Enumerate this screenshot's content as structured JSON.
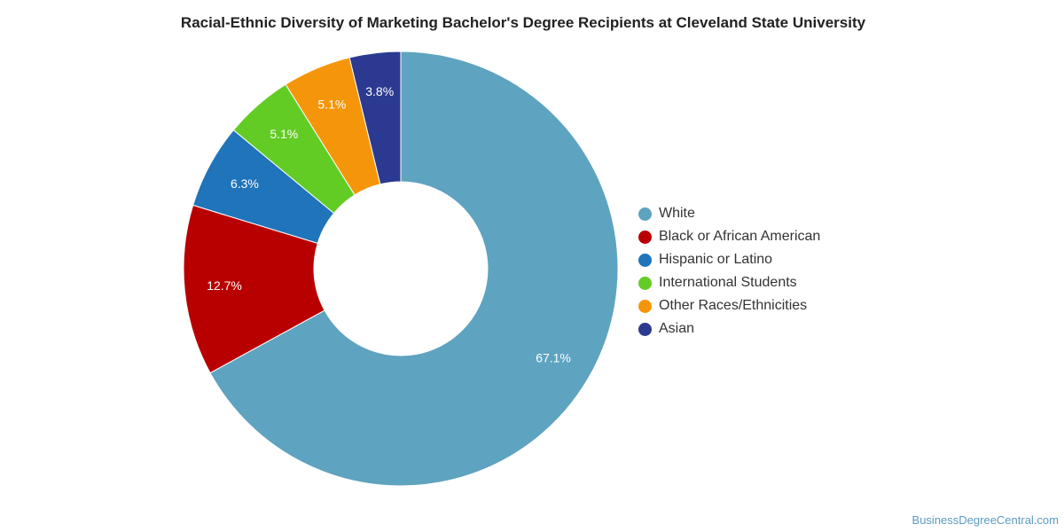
{
  "chart_data": {
    "type": "pie",
    "title": "Racial-Ethnic Diversity of Marketing Bachelor's Degree Recipients at Cleveland State University",
    "donut": true,
    "legend_position": "right",
    "series": [
      {
        "name": "White",
        "value": 67.1,
        "label": "67.1%",
        "color": "#5ea3c0"
      },
      {
        "name": "Black or African American",
        "value": 12.7,
        "label": "12.7%",
        "color": "#b80000"
      },
      {
        "name": "Hispanic or Latino",
        "value": 6.3,
        "label": "6.3%",
        "color": "#1f74ba"
      },
      {
        "name": "International Students",
        "value": 5.1,
        "label": "5.1%",
        "color": "#63cc24"
      },
      {
        "name": "Other Races/Ethnicities",
        "value": 5.1,
        "label": "5.1%",
        "color": "#f5960a"
      },
      {
        "name": "Asian",
        "value": 3.8,
        "label": "3.8%",
        "color": "#2b3a90"
      }
    ]
  },
  "watermark": "BusinessDegreeCentral.com"
}
